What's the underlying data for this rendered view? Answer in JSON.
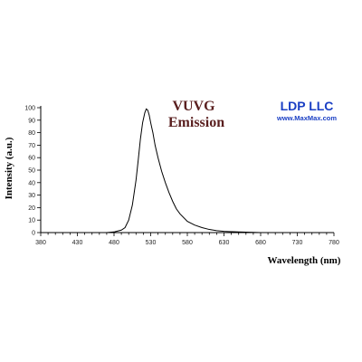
{
  "chart_data": {
    "type": "line",
    "title_lines": [
      "VUVG",
      "Emission"
    ],
    "xlabel": "Wavelength (nm)",
    "ylabel": "Intensity (a.u.)",
    "xlim": [
      380,
      780
    ],
    "ylim": [
      0,
      100
    ],
    "x_ticks": [
      380,
      430,
      480,
      530,
      580,
      630,
      680,
      730,
      780
    ],
    "y_ticks": [
      0,
      10,
      20,
      30,
      40,
      50,
      60,
      70,
      80,
      90,
      100
    ],
    "grid": false,
    "series": [
      {
        "x": [
          380,
          430,
          470,
          480,
          490,
          495,
          500,
          505,
          510,
          513,
          516,
          519,
          522,
          524,
          526,
          528,
          530,
          533,
          536,
          540,
          545,
          550,
          555,
          560,
          565,
          570,
          580,
          590,
          600,
          610,
          620,
          630,
          650,
          670,
          680
        ],
        "y": [
          0,
          0,
          0,
          0.5,
          2,
          4,
          10,
          22,
          42,
          58,
          75,
          88,
          96,
          99,
          98,
          94,
          88,
          80,
          70,
          60,
          49,
          40,
          32,
          25,
          19,
          15,
          9,
          6,
          4,
          2.5,
          1.5,
          1,
          0.5,
          0.2,
          0
        ]
      }
    ]
  },
  "brand": {
    "name": "LDP LLC",
    "url": "www.MaxMax.com",
    "color": "#1a3fc4"
  },
  "title_color": "#5a1f1f"
}
